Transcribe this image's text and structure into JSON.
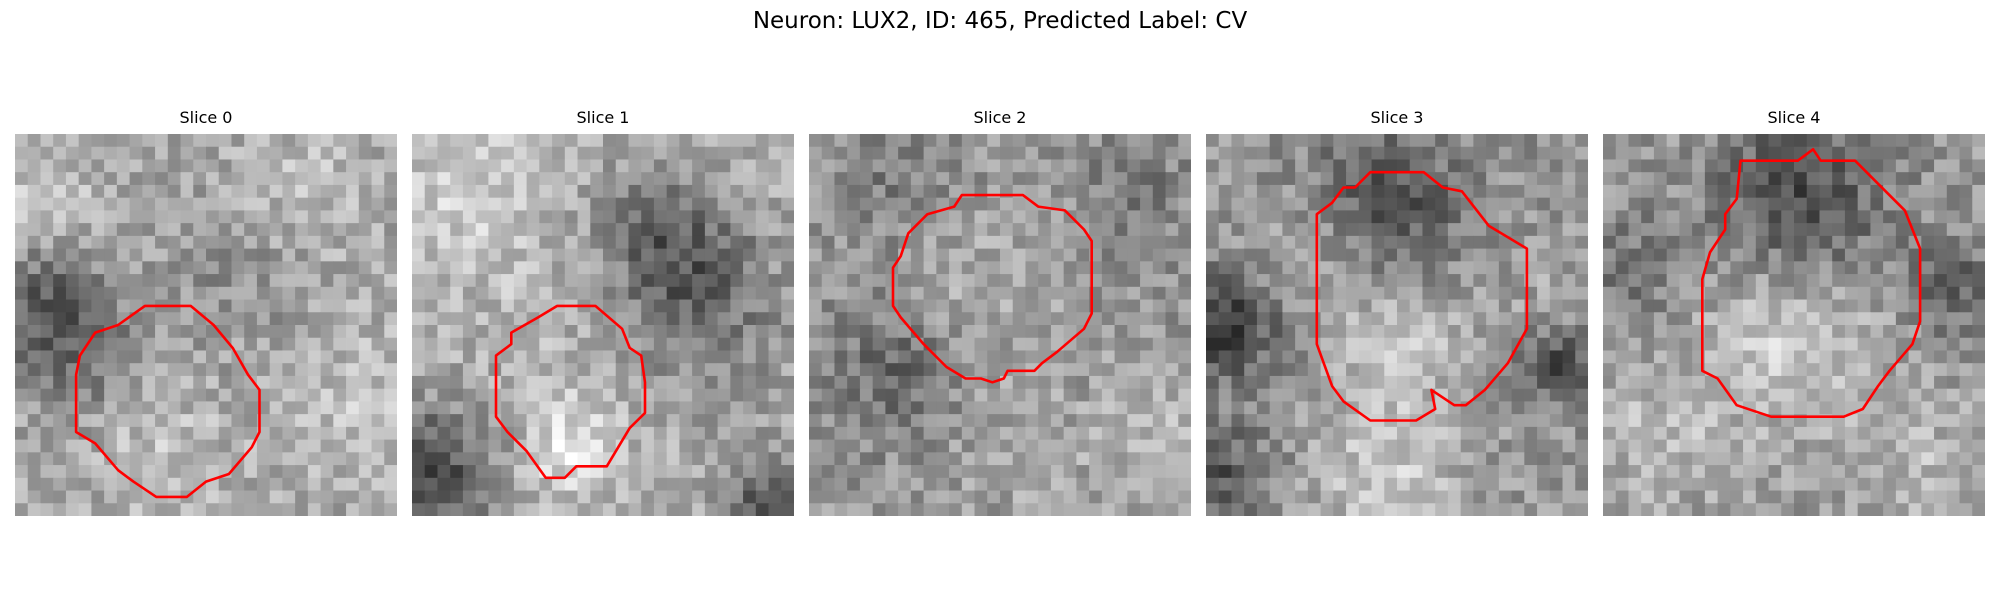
{
  "figure": {
    "title": "Neuron: LUX2, ID: 465, Predicted Label: CV"
  },
  "panels": [
    {
      "title": "Slice 0"
    },
    {
      "title": "Slice 1"
    },
    {
      "title": "Slice 2"
    },
    {
      "title": "Slice 3"
    },
    {
      "title": "Slice 4"
    }
  ],
  "colors": {
    "contour": "#ff0000",
    "colormap": "gray"
  }
}
